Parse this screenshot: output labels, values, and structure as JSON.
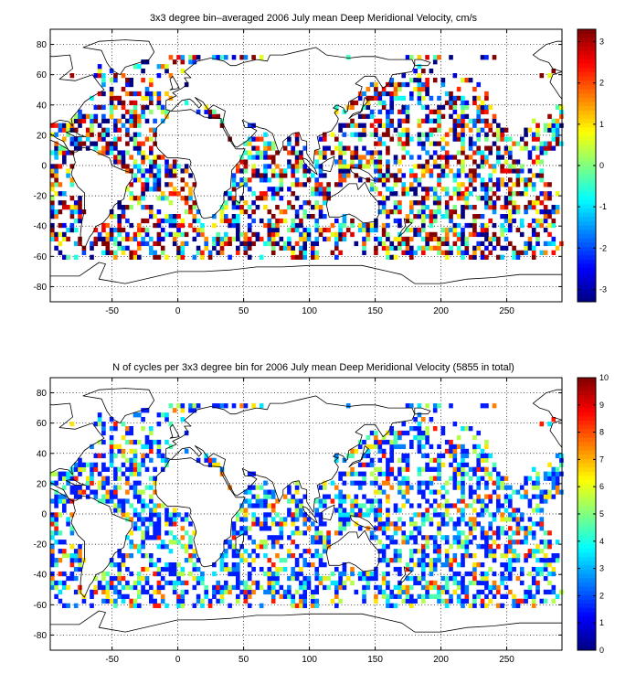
{
  "chart_data": [
    {
      "type": "heatmap",
      "title": "3x3 degree bin–averaged 2006 July mean Deep Meridional Velocity, cm/s",
      "xlabel": "",
      "ylabel": "",
      "xlim": [
        -97,
        292
      ],
      "ylim": [
        -90,
        90
      ],
      "xticks": [
        -50,
        0,
        50,
        100,
        150,
        200,
        250
      ],
      "yticks": [
        80,
        60,
        40,
        20,
        0,
        -20,
        -40,
        -60,
        -80
      ],
      "grid": true,
      "bin_size_deg": 3,
      "colormap": "jet",
      "colorbar": {
        "vmin": -3.3,
        "vmax": 3.3,
        "ticks": [
          3,
          2,
          1,
          0,
          -1,
          -2,
          -3
        ],
        "placement": "right"
      },
      "seed": 1234
    },
    {
      "type": "heatmap",
      "title": "N of cycles per 3x3 degree bin for 2006 July mean Deep Meridional Velocity (5855 in total)",
      "xlabel": "",
      "ylabel": "",
      "xlim": [
        -97,
        292
      ],
      "ylim": [
        -90,
        90
      ],
      "xticks": [
        -50,
        0,
        50,
        100,
        150,
        200,
        250
      ],
      "yticks": [
        80,
        60,
        40,
        20,
        0,
        -20,
        -40,
        -60,
        -80
      ],
      "grid": true,
      "bin_size_deg": 3,
      "colormap": "jet",
      "total_cycles": 5855,
      "colorbar": {
        "vmin": 0,
        "vmax": 10,
        "ticks": [
          10,
          9,
          8,
          7,
          6,
          5,
          4,
          3,
          2,
          1,
          0
        ],
        "placement": "right"
      },
      "seed": 1234
    }
  ]
}
